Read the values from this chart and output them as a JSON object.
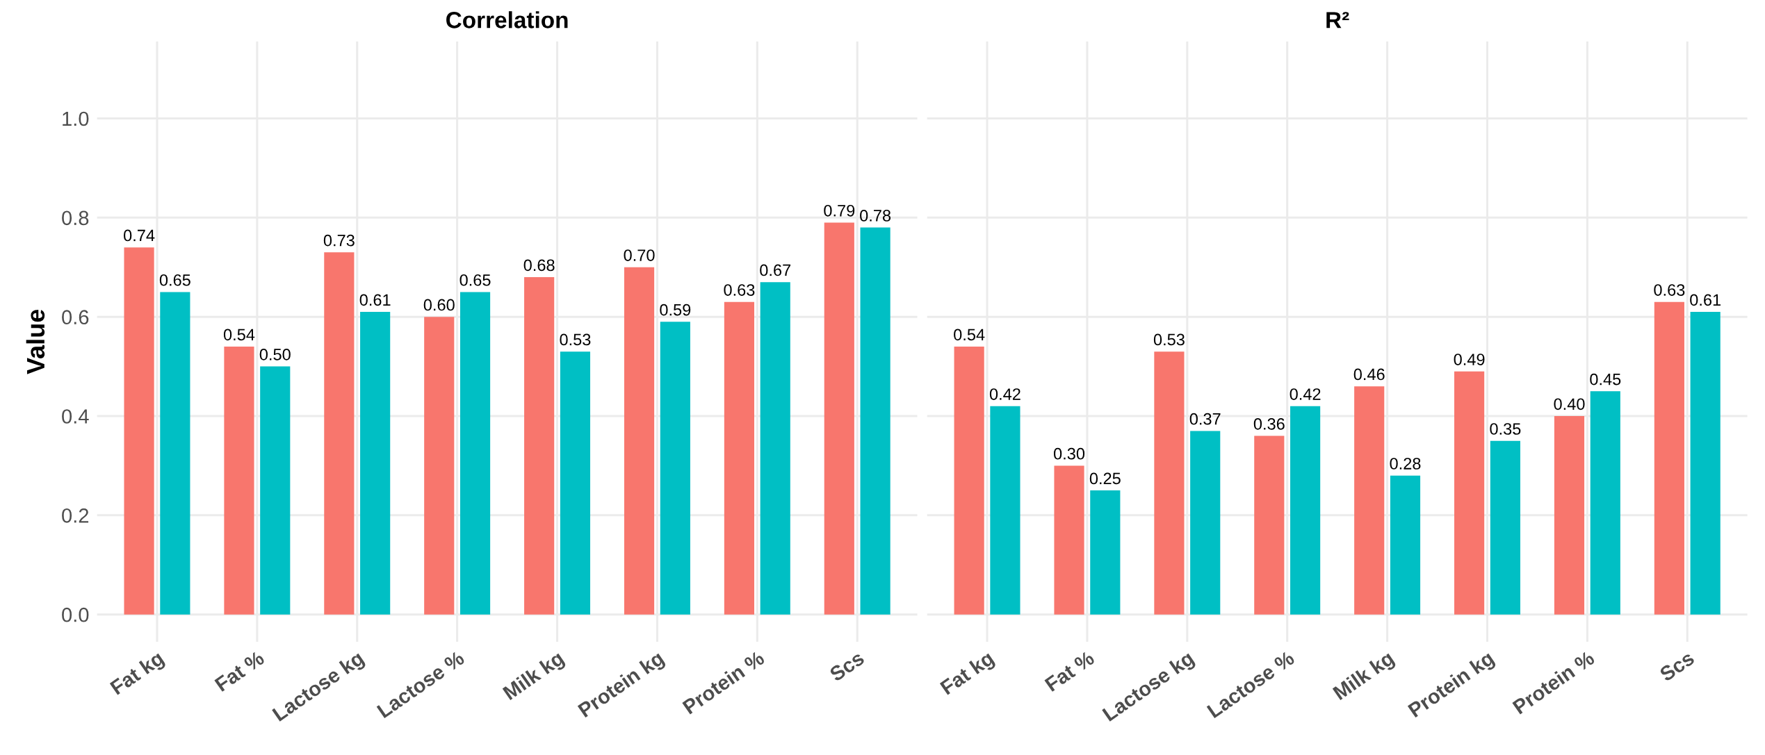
{
  "chart_data": [
    {
      "type": "bar",
      "title": "Correlation",
      "ylabel": "Value",
      "categories": [
        "Fat kg",
        "Fat %",
        "Lactose kg",
        "Lactose %",
        "Milk kg",
        "Protein kg",
        "Protein %",
        "Scs"
      ],
      "series": [
        {
          "color": "#f8766d",
          "values": [
            0.74,
            0.54,
            0.73,
            0.6,
            0.68,
            0.7,
            0.63,
            0.79
          ],
          "value_labels": [
            "0.74",
            "0.54",
            "0.73",
            "0.60",
            "0.68",
            "0.70",
            "0.63",
            "0.79"
          ]
        },
        {
          "color": "#00bfc4",
          "values": [
            0.65,
            0.5,
            0.61,
            0.65,
            0.53,
            0.59,
            0.67,
            0.78
          ],
          "value_labels": [
            "0.65",
            "0.50",
            "0.61",
            "0.65",
            "0.53",
            "0.59",
            "0.67",
            "0.78"
          ]
        }
      ],
      "ylim": [
        -0.055,
        1.155
      ],
      "yticks": [
        {
          "value": 0,
          "label": "0.0"
        },
        {
          "value": 0.2,
          "label": "0.2"
        },
        {
          "value": 0.4,
          "label": "0.4"
        },
        {
          "value": 0.6,
          "label": "0.6"
        },
        {
          "value": 0.8,
          "label": "0.8"
        },
        {
          "value": 1,
          "label": "1.0"
        }
      ],
      "grid": true
    },
    {
      "type": "bar",
      "title": "R²",
      "categories": [
        "Fat kg",
        "Fat %",
        "Lactose kg",
        "Lactose %",
        "Milk kg",
        "Protein kg",
        "Protein %",
        "Scs"
      ],
      "series": [
        {
          "color": "#f8766d",
          "values": [
            0.54,
            0.3,
            0.53,
            0.36,
            0.46,
            0.49,
            0.4,
            0.63
          ],
          "value_labels": [
            "0.54",
            "0.30",
            "0.53",
            "0.36",
            "0.46",
            "0.49",
            "0.40",
            "0.63"
          ]
        },
        {
          "color": "#00bfc4",
          "values": [
            0.42,
            0.25,
            0.37,
            0.42,
            0.28,
            0.35,
            0.45,
            0.61
          ],
          "value_labels": [
            "0.42",
            "0.25",
            "0.37",
            "0.42",
            "0.28",
            "0.35",
            "0.45",
            "0.61"
          ]
        }
      ],
      "ylim": [
        -0.055,
        1.155
      ],
      "yticks": [
        0,
        0.2,
        0.4,
        0.6,
        0.8,
        1
      ],
      "grid": true,
      "tick_labels": "x"
    }
  ]
}
